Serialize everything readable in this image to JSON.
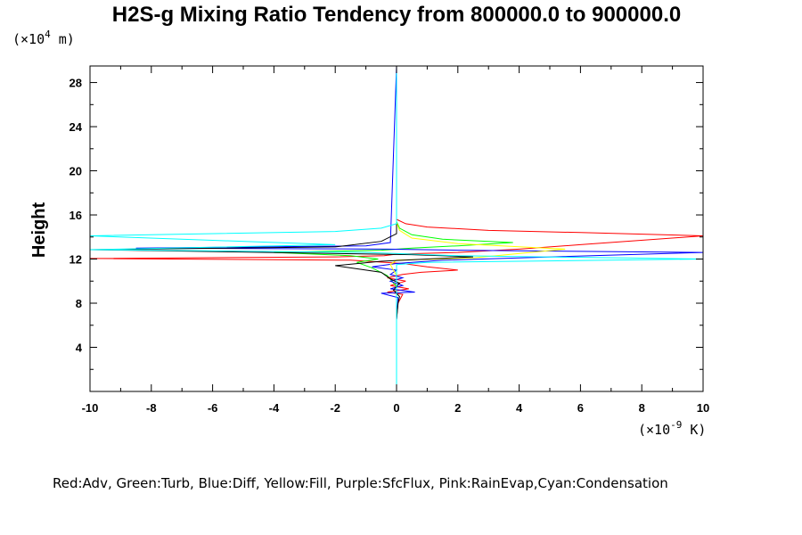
{
  "chart_data": {
    "type": "line",
    "title": "H2S-g Mixing Ratio Tendency from 800000.0 to 900000.0",
    "ylabel": "Height",
    "y_unit_label": {
      "prefix": "(×10",
      "exp": "4",
      "suffix": " m)"
    },
    "x_unit_label": {
      "prefix": "(×10",
      "exp": "-9",
      "suffix": " K)"
    },
    "xlim": [
      -10,
      10
    ],
    "ylim": [
      0,
      29.5
    ],
    "x_ticks": [
      -10,
      -8,
      -6,
      -4,
      -2,
      0,
      2,
      4,
      6,
      8,
      10
    ],
    "x_tick_labels": [
      "-10",
      "-8",
      "-6",
      "-4",
      "-2",
      "0",
      "2",
      "4",
      "6",
      "8",
      "10"
    ],
    "y_ticks": [
      4,
      8,
      12,
      16,
      20,
      24,
      28
    ],
    "y_tick_labels": [
      "4",
      "8",
      "12",
      "16",
      "20",
      "24",
      "28"
    ],
    "grid": false,
    "legend_text": "Red:Adv, Green:Turb, Blue:Diff, Yellow:Fill, Purple:SfcFlux, Pink:RainEvap,Cyan:Condensation",
    "series": [
      {
        "color": "#ff0000",
        "points": [
          [
            0,
            6.5
          ],
          [
            0.05,
            8.0
          ],
          [
            0.2,
            8.8
          ],
          [
            -0.3,
            9.0
          ],
          [
            0.4,
            9.3
          ],
          [
            -0.2,
            9.6
          ],
          [
            0.3,
            10.0
          ],
          [
            -0.3,
            10.3
          ],
          [
            0.2,
            10.6
          ],
          [
            0.8,
            10.8
          ],
          [
            2.0,
            11.0
          ],
          [
            1.0,
            11.3
          ],
          [
            0.2,
            11.6
          ],
          [
            -1.5,
            11.9
          ],
          [
            -10,
            12.05
          ],
          [
            -2,
            12.2
          ],
          [
            -0.4,
            12.3
          ],
          [
            0,
            12.45
          ],
          [
            2,
            12.6
          ],
          [
            4,
            12.9
          ],
          [
            6,
            13.3
          ],
          [
            10,
            14.1
          ],
          [
            6,
            14.4
          ],
          [
            3,
            14.6
          ],
          [
            1,
            14.9
          ],
          [
            0.3,
            15.2
          ],
          [
            0,
            15.6
          ],
          [
            0,
            29.5
          ]
        ]
      },
      {
        "color": "#00ff00",
        "points": [
          [
            0,
            6.5
          ],
          [
            0,
            9.5
          ],
          [
            -0.3,
            10.5
          ],
          [
            -0.8,
            11.2
          ],
          [
            -1.3,
            11.7
          ],
          [
            -0.6,
            12.0
          ],
          [
            -1.5,
            12.3
          ],
          [
            -4.0,
            12.6
          ],
          [
            -0.5,
            12.8
          ],
          [
            0.5,
            13.0
          ],
          [
            2.0,
            13.2
          ],
          [
            3.8,
            13.5
          ],
          [
            1.5,
            13.8
          ],
          [
            0.5,
            14.2
          ],
          [
            0.1,
            14.8
          ],
          [
            0,
            15.4
          ],
          [
            0,
            29.5
          ]
        ]
      },
      {
        "color": "#0000ff",
        "points": [
          [
            0,
            6.5
          ],
          [
            0.05,
            8.5
          ],
          [
            -0.5,
            8.9
          ],
          [
            0.6,
            9.0
          ],
          [
            -0.2,
            9.3
          ],
          [
            0.2,
            9.6
          ],
          [
            -0.2,
            10.0
          ],
          [
            0.2,
            10.3
          ],
          [
            -0.2,
            10.6
          ],
          [
            0,
            11.0
          ],
          [
            -0.8,
            11.3
          ],
          [
            0,
            11.6
          ],
          [
            1.5,
            11.9
          ],
          [
            10,
            12.6
          ],
          [
            2,
            12.8
          ],
          [
            -0.3,
            12.9
          ],
          [
            -8.5,
            13.0
          ],
          [
            -1,
            13.2
          ],
          [
            -0.2,
            13.5
          ],
          [
            0,
            29.5
          ]
        ]
      },
      {
        "color": "#ffff00",
        "points": [
          [
            0,
            6.5
          ],
          [
            0,
            10.5
          ],
          [
            -0.2,
            11.5
          ],
          [
            0,
            11.9
          ],
          [
            2.5,
            12.1
          ],
          [
            5.5,
            12.9
          ],
          [
            2.0,
            13.4
          ],
          [
            0.5,
            13.9
          ],
          [
            0.1,
            14.6
          ],
          [
            0,
            15.3
          ],
          [
            0,
            29.5
          ]
        ]
      },
      {
        "color": "#000000",
        "points": [
          [
            0,
            6.5
          ],
          [
            0.05,
            8.0
          ],
          [
            0.1,
            8.6
          ],
          [
            -0.1,
            9.2
          ],
          [
            0.1,
            9.8
          ],
          [
            -0.2,
            10.2
          ],
          [
            -0.5,
            10.8
          ],
          [
            -2.0,
            11.4
          ],
          [
            -0.5,
            11.8
          ],
          [
            1.0,
            12.0
          ],
          [
            2.5,
            12.2
          ],
          [
            0.5,
            12.4
          ],
          [
            -10,
            12.85
          ],
          [
            -2,
            13.1
          ],
          [
            -0.5,
            13.6
          ],
          [
            0,
            14.3
          ],
          [
            0,
            29.5
          ]
        ]
      },
      {
        "color": "#00ffff",
        "points": [
          [
            0,
            0
          ],
          [
            0,
            11.5
          ],
          [
            1.0,
            11.7
          ],
          [
            10,
            12.0
          ],
          [
            2,
            12.3
          ],
          [
            -1,
            12.6
          ],
          [
            -10,
            12.85
          ],
          [
            -2,
            13.3
          ],
          [
            -6,
            13.7
          ],
          [
            -10,
            14.1
          ],
          [
            -2,
            14.5
          ],
          [
            -0.5,
            14.8
          ],
          [
            0,
            15.2
          ],
          [
            0,
            29.5
          ]
        ]
      }
    ]
  }
}
